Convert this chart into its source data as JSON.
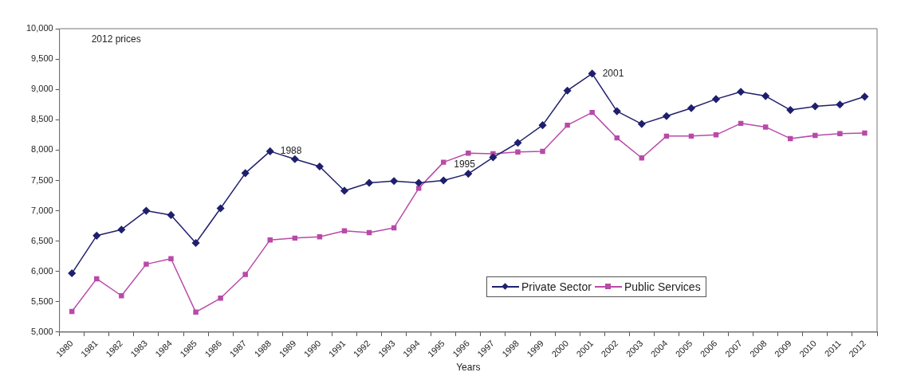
{
  "chart_data": {
    "type": "line",
    "xlabel": "Years",
    "categories": [
      "1980",
      "1981",
      "1982",
      "1983",
      "1984",
      "1985",
      "1986",
      "1987",
      "1988",
      "1989",
      "1990",
      "1991",
      "1992",
      "1993",
      "1994",
      "1995",
      "1996",
      "1997",
      "1998",
      "1999",
      "2000",
      "2001",
      "2002",
      "2003",
      "2004",
      "2005",
      "2006",
      "2007",
      "2008",
      "2009",
      "2010",
      "2011",
      "2012"
    ],
    "series": [
      {
        "name": "Private Sector",
        "color": "#1f1f6e",
        "marker": "diamond",
        "values": [
          5970,
          6590,
          6690,
          7000,
          6930,
          6470,
          7040,
          7620,
          7980,
          7850,
          7730,
          7330,
          7460,
          7490,
          7460,
          7500,
          7610,
          7880,
          8120,
          8410,
          8980,
          9260,
          8640,
          8430,
          8560,
          8690,
          8840,
          8960,
          8890,
          8660,
          8720,
          8750,
          8880
        ]
      },
      {
        "name": "Public Services",
        "color": "#b94aa8",
        "marker": "square",
        "values": [
          5340,
          5880,
          5600,
          6120,
          6210,
          5330,
          5560,
          5950,
          6520,
          6550,
          6570,
          6670,
          6640,
          6720,
          7370,
          7800,
          7950,
          7940,
          7970,
          7980,
          8410,
          8620,
          8200,
          7870,
          8230,
          8230,
          8250,
          8440,
          8380,
          8190,
          8240,
          8270,
          8280
        ]
      }
    ],
    "ylim": [
      5000,
      10000
    ],
    "yticks": [
      {
        "value": 5000,
        "label": "5,000"
      },
      {
        "value": 5500,
        "label": "5,500"
      },
      {
        "value": 6000,
        "label": "6,000"
      },
      {
        "value": 6500,
        "label": "6,500"
      },
      {
        "value": 7000,
        "label": "7,000"
      },
      {
        "value": 7500,
        "label": "7,500"
      },
      {
        "value": 8000,
        "label": "8,000"
      },
      {
        "value": 8500,
        "label": "8,500"
      },
      {
        "value": 9000,
        "label": "9,000"
      },
      {
        "value": 9500,
        "label": "9,500"
      },
      {
        "value": 10000,
        "label": "10,000"
      }
    ],
    "grid": false,
    "legend": "bottom right",
    "line_style": "solid",
    "annotations": [
      "2012 prices",
      {
        "text": "1988",
        "x": "1988",
        "y": 7980
      },
      {
        "text": "1995",
        "x": "1995",
        "y": 7500
      },
      {
        "text": "2001",
        "x": "2001",
        "y": 9260
      }
    ]
  }
}
